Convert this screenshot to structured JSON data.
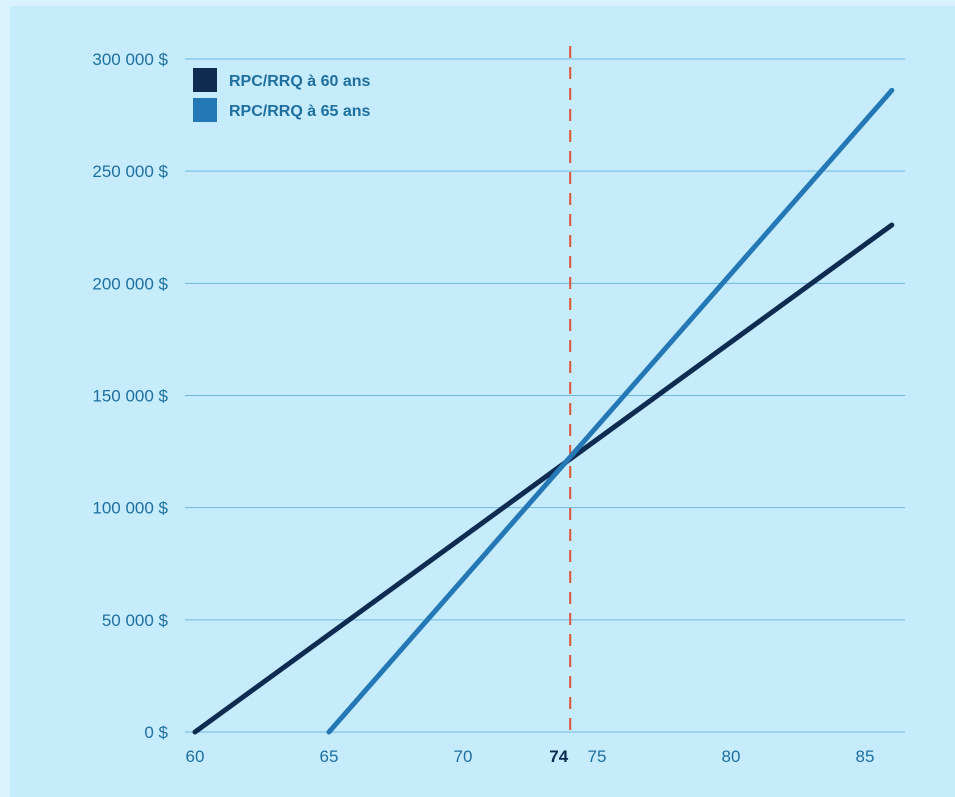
{
  "chart_data": {
    "type": "line",
    "x_ticks": [
      60,
      65,
      70,
      75,
      80,
      85
    ],
    "y_ticks": [
      {
        "value": 0,
        "label": "0 $"
      },
      {
        "value": 50000,
        "label": "50 000 $"
      },
      {
        "value": 100000,
        "label": "100 000 $"
      },
      {
        "value": 150000,
        "label": "150 000 $"
      },
      {
        "value": 200000,
        "label": "200 000 $"
      },
      {
        "value": 250000,
        "label": "250 000 $"
      },
      {
        "value": 300000,
        "label": "300 000 $"
      }
    ],
    "xlim": [
      60,
      86
    ],
    "ylim": [
      0,
      300000
    ],
    "series": [
      {
        "name": "RPC/RRQ à 60 ans",
        "color": "#0f2b50",
        "x": [
          60,
          86
        ],
        "y": [
          0,
          226000
        ]
      },
      {
        "name": "RPC/RRQ à 65 ans",
        "color": "#2378b5",
        "x": [
          65,
          86
        ],
        "y": [
          0,
          286000
        ]
      }
    ],
    "marker": {
      "x": 74,
      "label": "74",
      "color": "#d9543a",
      "style": "dashed"
    },
    "grid": "horizontal",
    "legend_position": "top-left",
    "xlabel": "",
    "ylabel": ""
  }
}
